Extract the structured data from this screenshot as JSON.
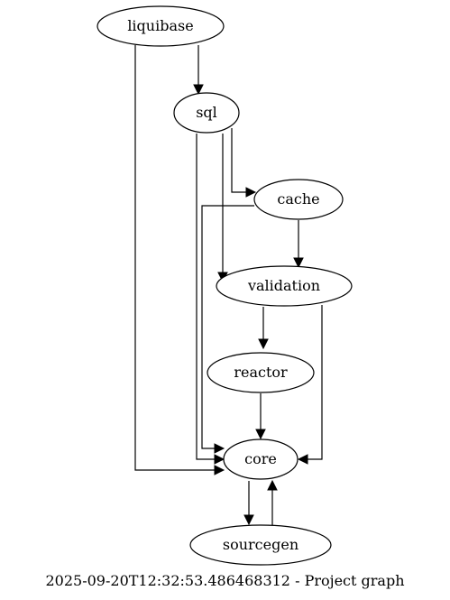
{
  "graph": {
    "nodes": {
      "liquibase": "liquibase",
      "sql": "sql",
      "cache": "cache",
      "validation": "validation",
      "reactor": "reactor",
      "core": "core",
      "sourcegen": "sourcegen"
    },
    "edges": [
      {
        "from": "liquibase",
        "to": "sql"
      },
      {
        "from": "liquibase",
        "to": "core"
      },
      {
        "from": "sql",
        "to": "cache"
      },
      {
        "from": "sql",
        "to": "validation"
      },
      {
        "from": "sql",
        "to": "core"
      },
      {
        "from": "cache",
        "to": "validation"
      },
      {
        "from": "cache",
        "to": "core"
      },
      {
        "from": "validation",
        "to": "reactor"
      },
      {
        "from": "validation",
        "to": "core"
      },
      {
        "from": "reactor",
        "to": "core"
      },
      {
        "from": "core",
        "to": "sourcegen"
      },
      {
        "from": "sourcegen",
        "to": "core"
      }
    ],
    "caption": "2025-09-20T12:32:53.486468312 - Project graph"
  }
}
